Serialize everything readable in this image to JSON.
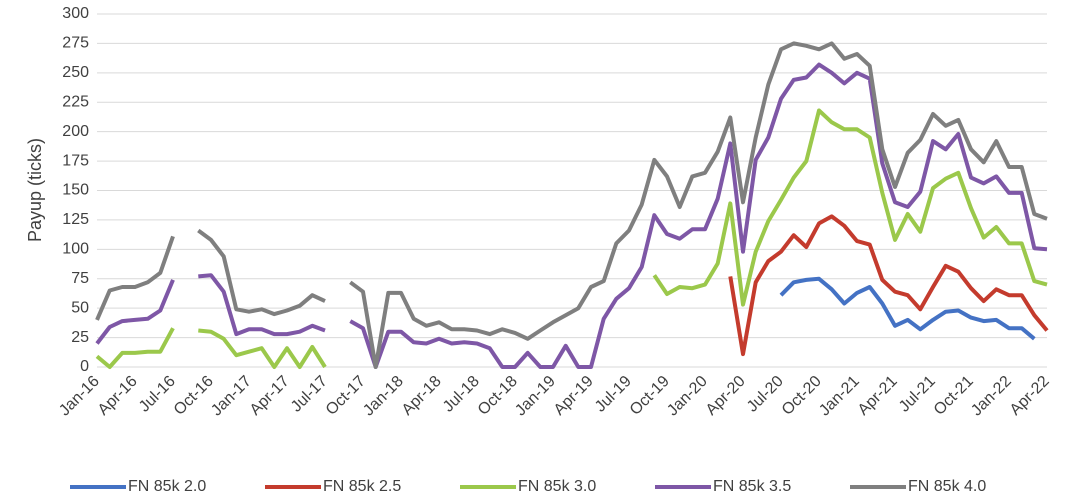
{
  "chart_data": {
    "type": "line",
    "y_label": "Payup (ticks)",
    "categories": [
      "Jan-16",
      null,
      null,
      "Apr-16",
      null,
      null,
      "Jul-16",
      null,
      null,
      "Oct-16",
      null,
      null,
      "Jan-17",
      null,
      null,
      "Apr-17",
      null,
      null,
      "Jul-17",
      null,
      null,
      "Oct-17",
      null,
      null,
      "Jan-18",
      null,
      null,
      "Apr-18",
      null,
      null,
      "Jul-18",
      null,
      null,
      "Oct-18",
      null,
      null,
      "Jan-19",
      null,
      null,
      "Apr-19",
      null,
      null,
      "Jul-19",
      null,
      null,
      "Oct-19",
      null,
      null,
      "Jan-20",
      null,
      null,
      "Apr-20",
      null,
      null,
      "Jul-20",
      null,
      null,
      "Oct-20",
      null,
      null,
      "Jan-21",
      null,
      null,
      "Apr-21",
      null,
      null,
      "Jul-21",
      null,
      null,
      "Oct-21",
      null,
      null,
      "Jan-22",
      null,
      null,
      "Apr-22"
    ],
    "series": [
      {
        "name": "FN 85k 2.0",
        "color": "#4472c4",
        "values": [
          null,
          null,
          null,
          null,
          null,
          null,
          null,
          null,
          null,
          null,
          null,
          null,
          null,
          null,
          null,
          null,
          null,
          null,
          null,
          null,
          null,
          null,
          null,
          null,
          null,
          null,
          null,
          null,
          null,
          null,
          null,
          null,
          null,
          null,
          null,
          null,
          null,
          null,
          null,
          null,
          null,
          null,
          null,
          null,
          null,
          null,
          null,
          null,
          null,
          null,
          null,
          null,
          null,
          null,
          61,
          72,
          74,
          75,
          66,
          54,
          63,
          68,
          54,
          35,
          40,
          32,
          40,
          47,
          48,
          42,
          39,
          40,
          33,
          33,
          24,
          null
        ]
      },
      {
        "name": "FN 85k 2.5",
        "color": "#c43b2d",
        "values": [
          null,
          null,
          null,
          null,
          null,
          null,
          null,
          null,
          null,
          null,
          null,
          null,
          null,
          null,
          null,
          null,
          null,
          null,
          null,
          null,
          null,
          null,
          null,
          null,
          null,
          null,
          null,
          null,
          null,
          null,
          null,
          null,
          null,
          null,
          null,
          null,
          null,
          null,
          null,
          null,
          null,
          null,
          null,
          null,
          null,
          null,
          null,
          null,
          null,
          null,
          77,
          11,
          72,
          90,
          98,
          112,
          102,
          122,
          128,
          120,
          107,
          104,
          74,
          64,
          61,
          49,
          68,
          86,
          81,
          67,
          56,
          66,
          61,
          61,
          44,
          31
        ]
      },
      {
        "name": "FN 85k 3.0",
        "color": "#9bc84b",
        "values": [
          9,
          0,
          12,
          12,
          13,
          13,
          33,
          null,
          31,
          30,
          24,
          10,
          13,
          16,
          0,
          16,
          0,
          17,
          0,
          null,
          null,
          null,
          null,
          null,
          null,
          null,
          null,
          null,
          null,
          null,
          null,
          null,
          null,
          null,
          null,
          null,
          null,
          null,
          null,
          null,
          null,
          null,
          null,
          null,
          78,
          62,
          68,
          67,
          70,
          88,
          139,
          53,
          98,
          124,
          142,
          161,
          175,
          218,
          208,
          202,
          202,
          195,
          148,
          108,
          130,
          115,
          152,
          160,
          165,
          135,
          110,
          119,
          105,
          105,
          73,
          70
        ]
      },
      {
        "name": "FN 85k 3.5",
        "color": "#7e57a6",
        "values": [
          20,
          34,
          39,
          40,
          41,
          48,
          74,
          null,
          77,
          78,
          64,
          28,
          32,
          32,
          28,
          28,
          30,
          35,
          31,
          null,
          39,
          33,
          0,
          30,
          30,
          21,
          20,
          24,
          20,
          21,
          20,
          16,
          0,
          0,
          12,
          0,
          0,
          18,
          0,
          0,
          41,
          58,
          67,
          85,
          129,
          113,
          109,
          117,
          117,
          143,
          190,
          98,
          176,
          195,
          228,
          244,
          246,
          257,
          250,
          241,
          250,
          245,
          173,
          140,
          136,
          149,
          192,
          185,
          198,
          161,
          156,
          162,
          148,
          148,
          101,
          100
        ]
      },
      {
        "name": "FN 85k 4.0",
        "color": "#7f7f7f",
        "values": [
          40,
          65,
          68,
          68,
          72,
          80,
          111,
          null,
          116,
          108,
          94,
          49,
          47,
          49,
          45,
          48,
          52,
          61,
          56,
          null,
          72,
          64,
          0,
          63,
          63,
          41,
          35,
          38,
          32,
          32,
          31,
          28,
          32,
          29,
          24,
          31,
          38,
          44,
          50,
          68,
          73,
          105,
          116,
          138,
          176,
          162,
          136,
          162,
          165,
          183,
          212,
          140,
          195,
          240,
          270,
          275,
          273,
          270,
          275,
          262,
          266,
          256,
          185,
          153,
          182,
          193,
          215,
          205,
          210,
          185,
          174,
          192,
          170,
          170,
          130,
          126
        ]
      }
    ],
    "ylim": [
      0,
      300
    ],
    "yticks": [
      0,
      25,
      50,
      75,
      100,
      125,
      150,
      175,
      200,
      225,
      250,
      275,
      300
    ],
    "grid": true,
    "legend": "bottom"
  }
}
